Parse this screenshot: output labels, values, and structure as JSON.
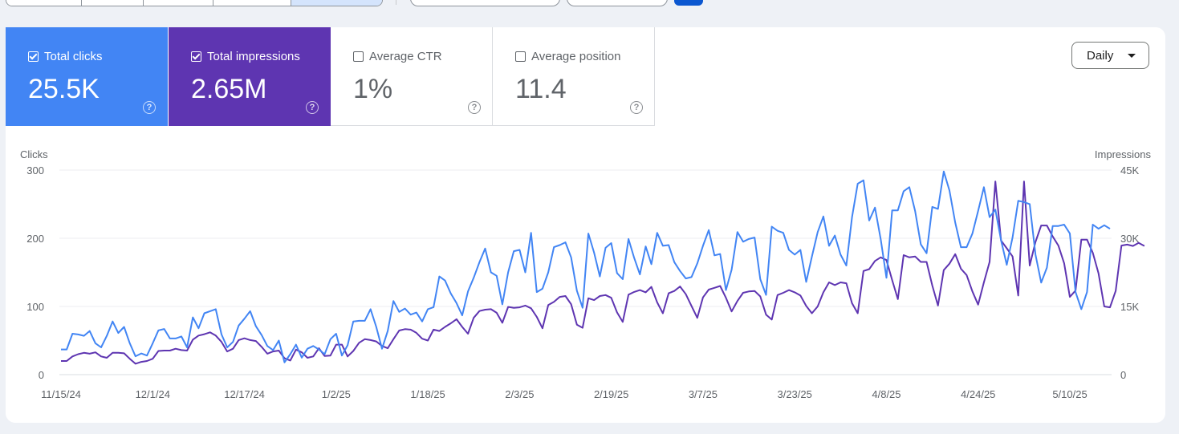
{
  "metrics": [
    {
      "label": "Total clicks",
      "value": "25.5K",
      "checked": true,
      "color": "#4285f4"
    },
    {
      "label": "Total impressions",
      "value": "2.65M",
      "checked": true,
      "color": "#5e35b1"
    },
    {
      "label": "Average CTR",
      "value": "1%",
      "checked": false
    },
    {
      "label": "Average position",
      "value": "11.4",
      "checked": false
    }
  ],
  "help_glyph": "?",
  "granularity": {
    "label": "Daily"
  },
  "chart_data": {
    "type": "line",
    "ylabel_left": "Clicks",
    "ylabel_right": "Impressions",
    "y_left_ticks": [
      "300",
      "200",
      "100",
      "0"
    ],
    "y_right_ticks": [
      "45K",
      "30K",
      "15K",
      "0"
    ],
    "ylim_left": [
      0,
      300
    ],
    "ylim_right": [
      0,
      45000
    ],
    "x_tick_labels": [
      "11/15/24",
      "12/1/24",
      "12/17/24",
      "1/2/25",
      "1/18/25",
      "2/3/25",
      "2/19/25",
      "3/7/25",
      "3/23/25",
      "4/8/25",
      "4/24/25",
      "5/10/25"
    ],
    "grid": true,
    "series": [
      {
        "name": "Clicks",
        "axis": "left",
        "color": "#4285f4",
        "values": [
          37,
          37,
          60,
          59,
          57,
          64,
          46,
          40,
          57,
          78,
          61,
          70,
          46,
          27,
          31,
          28,
          46,
          65,
          67,
          53,
          53,
          56,
          40,
          84,
          68,
          90,
          93,
          96,
          59,
          40,
          48,
          72,
          82,
          93,
          71,
          58,
          42,
          36,
          50,
          18,
          30,
          44,
          25,
          38,
          42,
          37,
          30,
          52,
          60,
          28,
          43,
          78,
          79,
          79,
          96,
          70,
          38,
          64,
          108,
          92,
          97,
          88,
          91,
          78,
          96,
          99,
          144,
          138,
          119,
          105,
          87,
          122,
          142,
          165,
          185,
          150,
          145,
          103,
          150,
          181,
          183,
          150,
          208,
          121,
          126,
          150,
          187,
          190,
          194,
          172,
          123,
          98,
          207,
          179,
          144,
          186,
          193,
          149,
          140,
          199,
          171,
          147,
          188,
          162,
          208,
          189,
          190,
          165,
          152,
          141,
          143,
          163,
          189,
          212,
          175,
          177,
          124,
          154,
          209,
          195,
          199,
          201,
          140,
          117,
          217,
          211,
          208,
          183,
          176,
          183,
          136,
          173,
          209,
          232,
          189,
          204,
          176,
          160,
          231,
          280,
          285,
          226,
          245,
          199,
          142,
          241,
          241,
          269,
          275,
          240,
          191,
          178,
          246,
          243,
          298,
          270,
          223,
          187,
          187,
          207,
          240,
          275,
          231,
          242,
          197,
          161,
          201,
          255,
          253,
          250,
          176,
          135,
          157,
          218,
          218,
          220,
          207,
          121,
          96,
          121,
          220,
          214,
          219,
          214
        ]
      },
      {
        "name": "Impressions",
        "axis": "right",
        "color": "#5e35b1",
        "values": [
          3000,
          3000,
          4000,
          4500,
          4800,
          4600,
          4900,
          4000,
          3700,
          4800,
          4800,
          4700,
          3500,
          2400,
          2800,
          3000,
          3500,
          5200,
          5300,
          5300,
          5700,
          5400,
          5300,
          7700,
          8600,
          8900,
          9300,
          8600,
          7200,
          5100,
          5700,
          7600,
          8000,
          7600,
          7400,
          6100,
          4600,
          5100,
          5300,
          3600,
          3100,
          5500,
          4900,
          3700,
          4000,
          5800,
          4100,
          4200,
          6600,
          6600,
          4000,
          5200,
          7000,
          7800,
          7600,
          7300,
          6300,
          5800,
          7800,
          9700,
          10000,
          9900,
          9200,
          7900,
          7500,
          9900,
          9600,
          10500,
          11300,
          12200,
          10500,
          9000,
          12500,
          14000,
          14300,
          14400,
          13600,
          11400,
          14900,
          14700,
          14800,
          15200,
          14600,
          12700,
          10200,
          15300,
          16000,
          17100,
          17300,
          15500,
          11000,
          10300,
          16800,
          16400,
          17300,
          17500,
          16900,
          13700,
          11600,
          17600,
          18200,
          18600,
          18100,
          19300,
          15900,
          13500,
          17900,
          18400,
          19400,
          17700,
          15100,
          12500,
          17000,
          18700,
          19100,
          19500,
          16900,
          13900,
          16200,
          18000,
          18300,
          18400,
          17200,
          13200,
          12100,
          17500,
          18000,
          18600,
          18100,
          17400,
          15100,
          13500,
          15000,
          18100,
          20300,
          19700,
          20300,
          20100,
          15700,
          13500,
          22800,
          23200,
          25000,
          25800,
          25200,
          20800,
          16600,
          26300,
          25800,
          26000,
          24800,
          24800,
          19600,
          15200,
          23000,
          24400,
          26500,
          23300,
          21900,
          18300,
          15400,
          20300,
          24800,
          27800,
          29500,
          27800,
          26000,
          17400,
          18200,
          24000,
          29200,
          32800,
          32800,
          30400,
          28400,
          24500,
          17100,
          18500,
          29700,
          29700,
          26800,
          22300,
          15000,
          14800,
          18400,
          28400,
          28600,
          28300,
          29000,
          28300
        ]
      }
    ],
    "spikes": [
      {
        "series": "Impressions",
        "x_index": 163,
        "value": 42500
      },
      {
        "series": "Impressions",
        "x_index": 168,
        "value": 42500
      }
    ]
  }
}
